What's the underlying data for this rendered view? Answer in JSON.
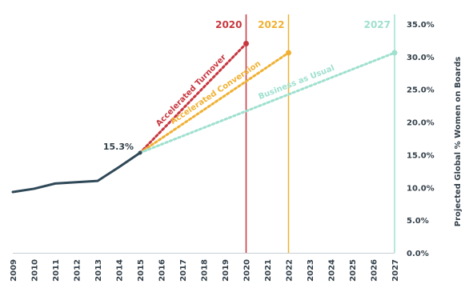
{
  "chart_data": {
    "type": "line",
    "ylabel": "Projected Global % Women on Boards",
    "x_ticks": [
      "2009",
      "2010",
      "2011",
      "2012",
      "2013",
      "2014",
      "2015",
      "2016",
      "2017",
      "2018",
      "2019",
      "2020",
      "2021",
      "2022",
      "2023",
      "2024",
      "2025",
      "2026",
      "2027"
    ],
    "y_ticks": [
      "0.0%",
      "5.0%",
      "10.0%",
      "15.0%",
      "20.0%",
      "25.0%",
      "30.0%",
      "35.0%"
    ],
    "xlim": [
      2009,
      2027
    ],
    "ylim": [
      0,
      35
    ],
    "historical": {
      "x": [
        2009,
        2010,
        2011,
        2012,
        2013,
        2014,
        2015
      ],
      "y": [
        9.3,
        9.8,
        10.6,
        10.8,
        11.0,
        13.1,
        15.3
      ],
      "color": "#2f4858"
    },
    "annotation": {
      "text": "15.3%",
      "x": 2015,
      "y": 15.3
    },
    "series": [
      {
        "name": "Accelerated Turnover",
        "color": "#c8373f",
        "x": [
          2015,
          2020
        ],
        "y": [
          15.3,
          32.0
        ],
        "marker_year": "2020"
      },
      {
        "name": "Accelerated Conversion",
        "color": "#f0b133",
        "x": [
          2015,
          2022
        ],
        "y": [
          15.3,
          30.6
        ],
        "marker_year": "2022"
      },
      {
        "name": "Business as Usual",
        "color": "#9fe0cf",
        "x": [
          2015,
          2027
        ],
        "y": [
          15.3,
          30.6
        ],
        "marker_year": "2027"
      }
    ]
  }
}
